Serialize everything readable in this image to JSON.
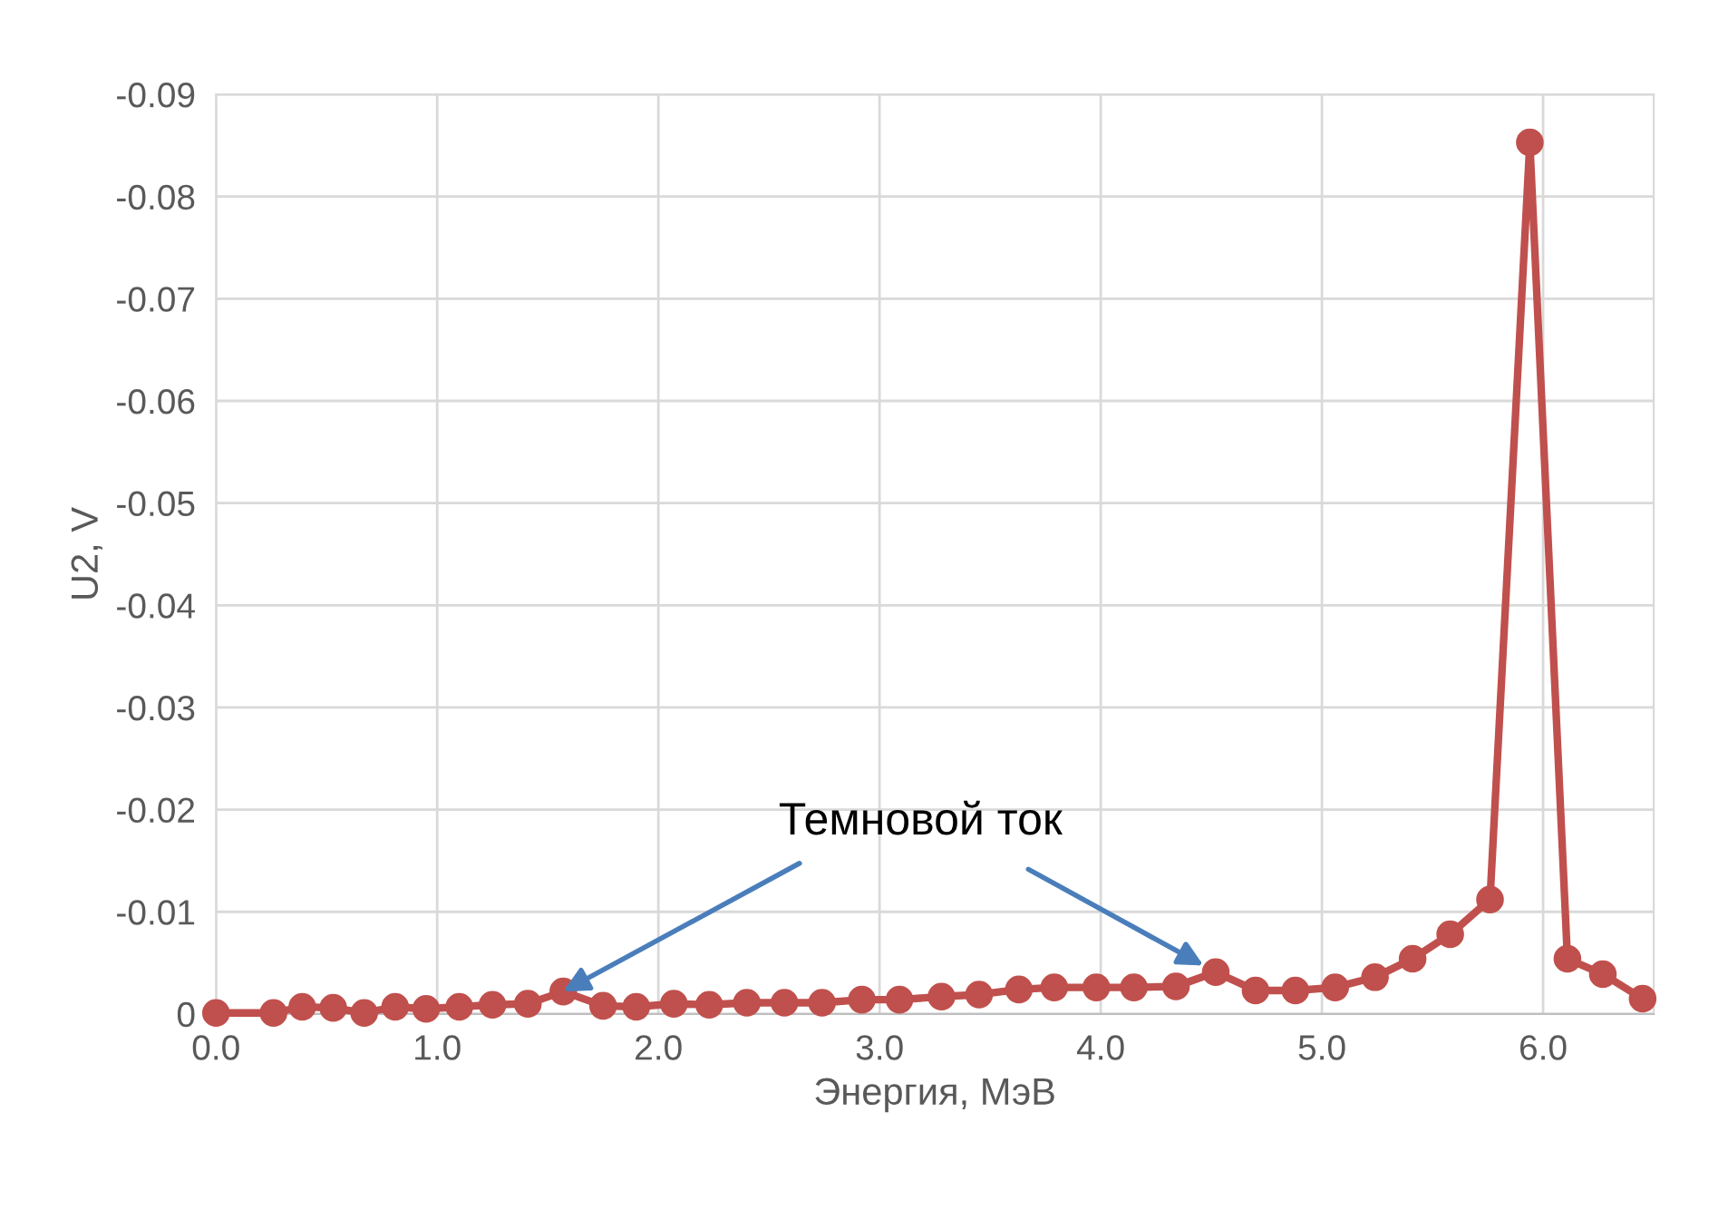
{
  "chart_data": {
    "type": "line",
    "xlabel": "Энергия, МэВ",
    "ylabel": "U2, V",
    "x": [
      0.0,
      0.26,
      0.39,
      0.53,
      0.67,
      0.81,
      0.95,
      1.1,
      1.25,
      1.41,
      1.57,
      1.75,
      1.9,
      2.07,
      2.23,
      2.4,
      2.57,
      2.74,
      2.92,
      3.09,
      3.28,
      3.45,
      3.63,
      3.79,
      3.98,
      4.15,
      4.34,
      4.52,
      4.7,
      4.88,
      5.06,
      5.24,
      5.41,
      5.58,
      5.76,
      5.94,
      6.11,
      6.27,
      6.45
    ],
    "series": [
      {
        "color": "#c0504d",
        "values": [
          -0.0001,
          -0.0001,
          -0.0007,
          -0.0006,
          -0.0001,
          -0.0007,
          -0.0005,
          -0.0007,
          -0.0009,
          -0.001,
          -0.0022,
          -0.0008,
          -0.0007,
          -0.001,
          -0.0009,
          -0.0011,
          -0.0011,
          -0.0011,
          -0.0014,
          -0.0014,
          -0.0017,
          -0.0019,
          -0.0024,
          -0.0026,
          -0.0026,
          -0.0026,
          -0.0027,
          -0.0041,
          -0.0023,
          -0.0023,
          -0.0026,
          -0.0036,
          -0.0054,
          -0.0078,
          -0.0112,
          -0.0853,
          -0.0054,
          -0.0039,
          -0.0015
        ]
      }
    ],
    "xlim": [
      0,
      6.5
    ],
    "ylim": [
      0,
      -0.09
    ],
    "xticks": [
      {
        "value": 0,
        "label": "0.0"
      },
      {
        "value": 1,
        "label": "1.0"
      },
      {
        "value": 2,
        "label": "2.0"
      },
      {
        "value": 3,
        "label": "3.0"
      },
      {
        "value": 4,
        "label": "4.0"
      },
      {
        "value": 5,
        "label": "5.0"
      },
      {
        "value": 6,
        "label": "6.0"
      }
    ],
    "yticks": [
      0,
      -0.01,
      -0.02,
      -0.03,
      -0.04,
      -0.05,
      -0.06,
      -0.07,
      -0.08,
      -0.09
    ],
    "grid": true,
    "marker": "circle",
    "line_style": "solid",
    "legend": false,
    "annotations": [
      {
        "text": "Темновой ток",
        "x": 1.57,
        "y": -0.0022
      }
    ]
  }
}
